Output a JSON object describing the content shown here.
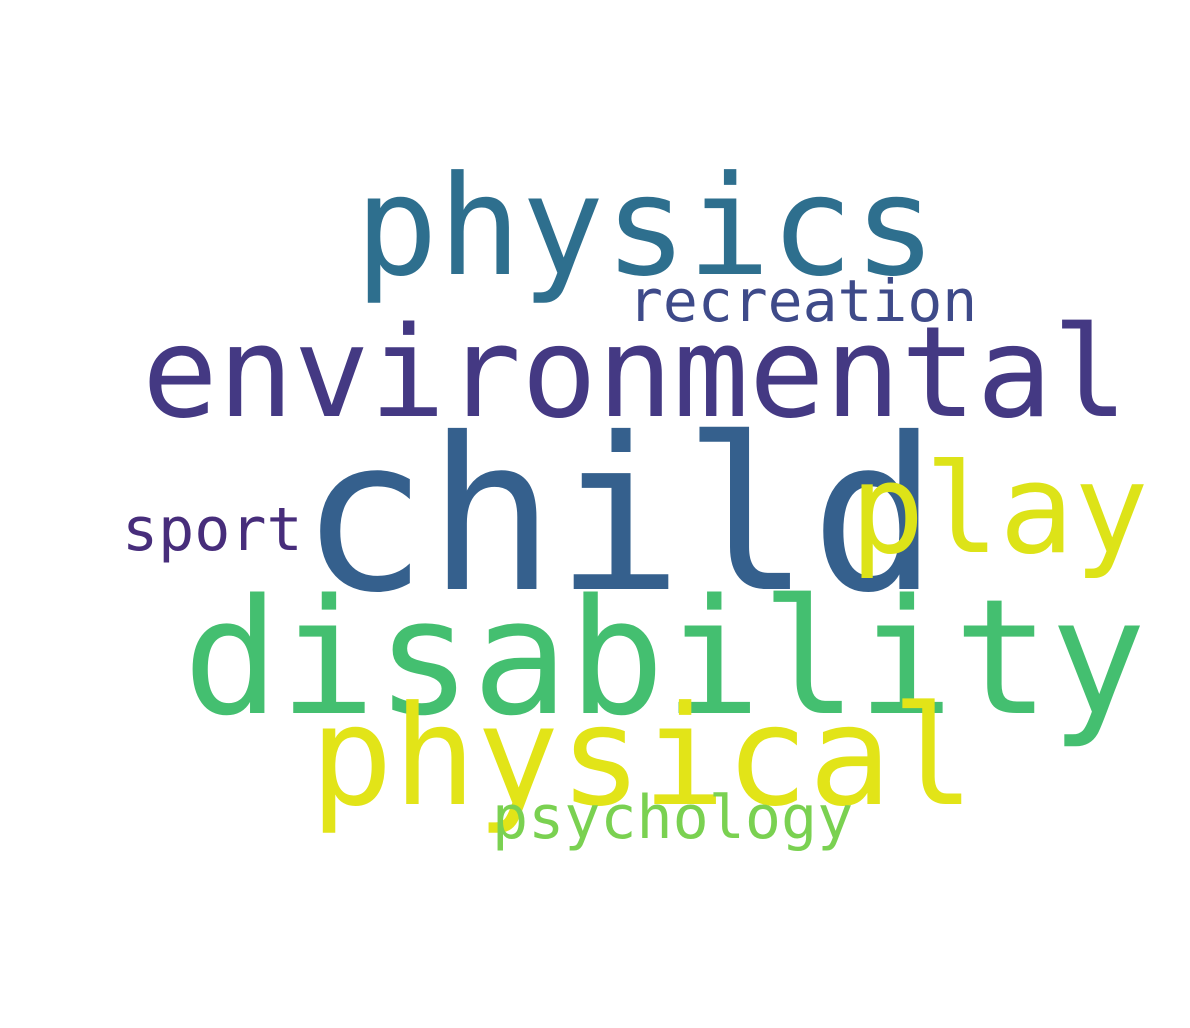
{
  "words": [
    {
      "text": "physics",
      "color": "#2e6f8e"
    },
    {
      "text": "recreation",
      "color": "#3e4a89"
    },
    {
      "text": "environmental",
      "color": "#443983"
    },
    {
      "text": "child",
      "color": "#35608d"
    },
    {
      "text": "play",
      "color": "#dde318"
    },
    {
      "text": "sport",
      "color": "#472d7b"
    },
    {
      "text": "disability",
      "color": "#44bf70"
    },
    {
      "text": "physical",
      "color": "#e2e418"
    },
    {
      "text": "psychology",
      "color": "#7ad151"
    }
  ]
}
